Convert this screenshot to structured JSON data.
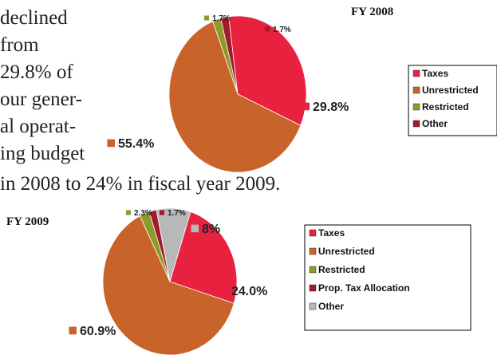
{
  "text": [
    "declined",
    "from",
    "29.8% of",
    "our gener-",
    "al operat-",
    "ing budget",
    "in 2008 to 24% in fiscal year 2009."
  ],
  "chart_data": [
    {
      "type": "pie",
      "title": "FY 2008",
      "categories": [
        "Taxes",
        "Unrestricted",
        "Restricted",
        "Other"
      ],
      "values": [
        29.8,
        55.4,
        1.7,
        1.7
      ],
      "value_labels": [
        "29.8%",
        "55.4%",
        "1.7%",
        "1.7%"
      ],
      "colors": [
        "#e8213f",
        "#c8642a",
        "#8c9a2a",
        "#a3192e"
      ]
    },
    {
      "type": "pie",
      "title": "FY 2009",
      "categories": [
        "Taxes",
        "Unrestricted",
        "Restricted",
        "Prop. Tax Allocation",
        "Other"
      ],
      "values": [
        24.0,
        60.9,
        2.3,
        1.7,
        8
      ],
      "value_labels": [
        "24.0%",
        "60.9%",
        "2.3%",
        "1.7%",
        "8%"
      ],
      "colors": [
        "#e8213f",
        "#c8642a",
        "#8c9a2a",
        "#a3192e",
        "#b8b8b8"
      ]
    }
  ]
}
